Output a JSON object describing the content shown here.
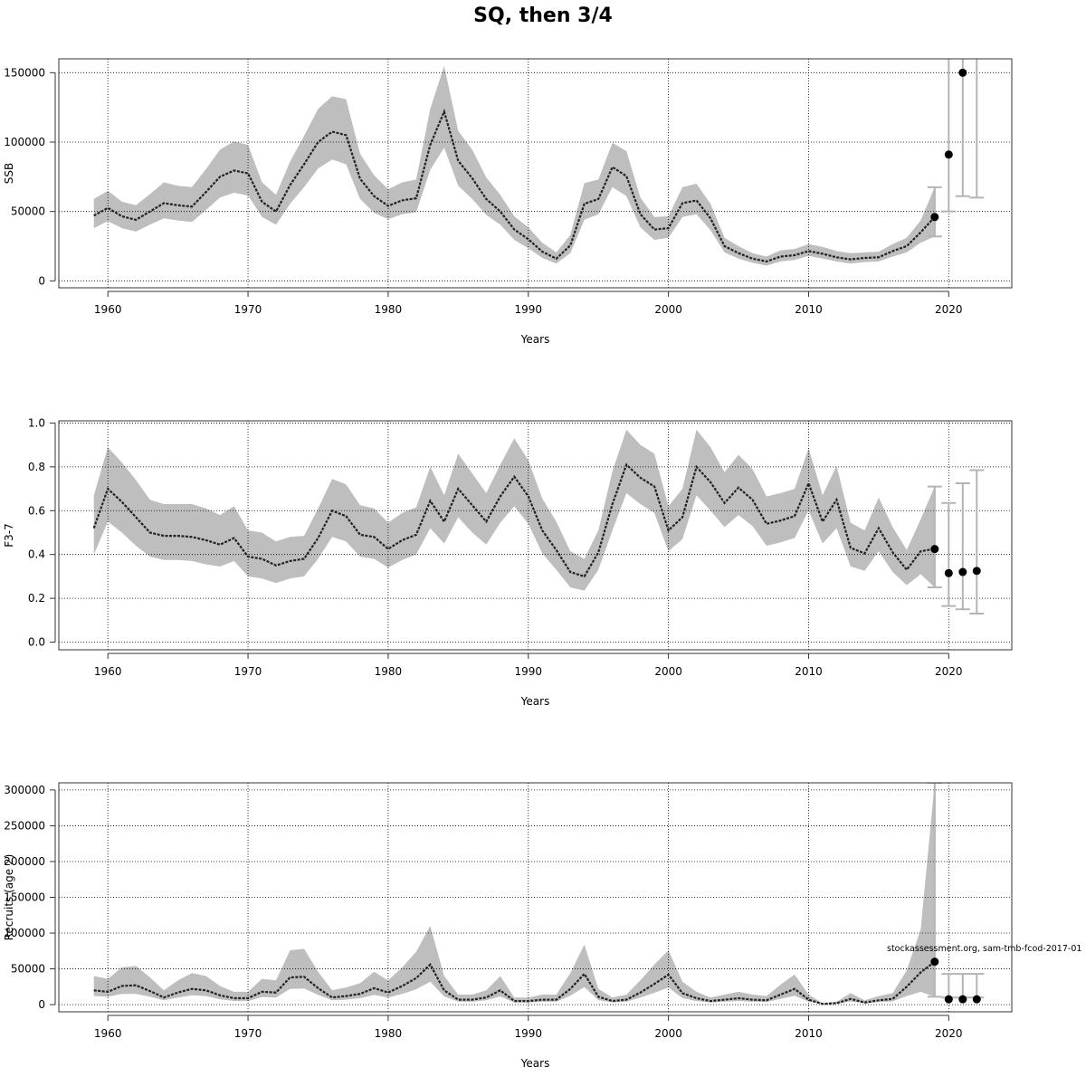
{
  "title": "SQ, then 3/4",
  "footnote": "stockassessment.org, sam-tmb-fcod-2017-01",
  "colors": {
    "band": "#bebebe",
    "line": "#222222",
    "grid": "#000000",
    "errorbar": "#b4b4b4",
    "point": "#000000"
  },
  "chart_data": [
    {
      "type": "area",
      "ylabel": "SSB",
      "xlabel": "Years",
      "xlim": [
        1956.5,
        2024.5
      ],
      "ylim": [
        -5000,
        160000
      ],
      "xticks": [
        "1960",
        "1970",
        "1980",
        "1990",
        "2000",
        "2010",
        "2020"
      ],
      "yticks": [
        "0",
        "50000",
        "100000",
        "150000"
      ],
      "grid": true,
      "years": [
        1959,
        1960,
        1961,
        1962,
        1963,
        1964,
        1965,
        1966,
        1967,
        1968,
        1969,
        1970,
        1971,
        1972,
        1973,
        1974,
        1975,
        1976,
        1977,
        1978,
        1979,
        1980,
        1981,
        1982,
        1983,
        1984,
        1985,
        1986,
        1987,
        1988,
        1989,
        1990,
        1991,
        1992,
        1993,
        1994,
        1995,
        1996,
        1997,
        1998,
        1999,
        2000,
        2001,
        2002,
        2003,
        2004,
        2005,
        2006,
        2007,
        2008,
        2009,
        2010,
        2011,
        2012,
        2013,
        2014,
        2015,
        2016,
        2017,
        2018,
        2019
      ],
      "estimate": [
        47000,
        52500,
        46500,
        44000,
        50000,
        56000,
        54500,
        53500,
        64000,
        75000,
        79500,
        77500,
        57000,
        50000,
        69000,
        84000,
        100000,
        107500,
        105000,
        73500,
        61000,
        54000,
        58000,
        59500,
        98000,
        122000,
        86500,
        74000,
        59000,
        50000,
        37000,
        30000,
        21000,
        16000,
        25500,
        55500,
        59000,
        82000,
        75500,
        48000,
        37000,
        38000,
        56000,
        58000,
        45000,
        25000,
        20000,
        16000,
        14000,
        17500,
        18500,
        21500,
        19500,
        17000,
        15500,
        16500,
        17000,
        21500,
        25000,
        35000,
        46000
      ],
      "lower": [
        38000,
        43000,
        38000,
        35500,
        40500,
        45000,
        43500,
        42500,
        51000,
        60000,
        63500,
        61500,
        46000,
        40500,
        55500,
        67500,
        81000,
        87500,
        84000,
        59000,
        49000,
        44500,
        48000,
        49500,
        80000,
        96000,
        68500,
        59000,
        47500,
        40500,
        29500,
        23500,
        16500,
        12500,
        20000,
        44000,
        48000,
        67500,
        61000,
        38500,
        29500,
        31000,
        46000,
        48000,
        36500,
        20500,
        16000,
        13000,
        11000,
        14000,
        15000,
        18000,
        16000,
        14000,
        12500,
        13500,
        14000,
        17500,
        20500,
        27500,
        32000
      ],
      "upper": [
        59000,
        65000,
        57000,
        54500,
        62500,
        71000,
        68500,
        67500,
        80500,
        94500,
        100500,
        98000,
        71000,
        62000,
        86000,
        104500,
        124000,
        133000,
        131000,
        91500,
        76000,
        66000,
        71000,
        73000,
        124000,
        155000,
        108000,
        94500,
        74500,
        62000,
        46500,
        38500,
        27500,
        20500,
        33000,
        70500,
        73000,
        99500,
        93500,
        60000,
        46000,
        46500,
        67500,
        70000,
        55500,
        31000,
        25000,
        20000,
        17500,
        22000,
        23000,
        26500,
        24500,
        21500,
        20000,
        20500,
        21000,
        26500,
        31000,
        43500,
        67500
      ],
      "forecast": {
        "years": [
          2019,
          2020,
          2021,
          2022
        ],
        "median": [
          46000,
          91000,
          150000,
          null
        ],
        "low": [
          32000,
          50000,
          61000,
          60000
        ],
        "high": [
          67500,
          null,
          null,
          null
        ]
      }
    },
    {
      "type": "area",
      "ylabel": "F3-7",
      "xlabel": "Years",
      "xlim": [
        1956.5,
        2024.5
      ],
      "ylim": [
        -0.035,
        1.01
      ],
      "xticks": [
        "1960",
        "1970",
        "1980",
        "1990",
        "2000",
        "2010",
        "2020"
      ],
      "yticks": [
        "0.0",
        "0.2",
        "0.4",
        "0.6",
        "0.8",
        "1.0"
      ],
      "grid": true,
      "years": [
        1959,
        1960,
        1961,
        1962,
        1963,
        1964,
        1965,
        1966,
        1967,
        1968,
        1969,
        1970,
        1971,
        1972,
        1973,
        1974,
        1975,
        1976,
        1977,
        1978,
        1979,
        1980,
        1981,
        1982,
        1983,
        1984,
        1985,
        1986,
        1987,
        1988,
        1989,
        1990,
        1991,
        1992,
        1993,
        1994,
        1995,
        1996,
        1997,
        1998,
        1999,
        2000,
        2001,
        2002,
        2003,
        2004,
        2005,
        2006,
        2007,
        2008,
        2009,
        2010,
        2011,
        2012,
        2013,
        2014,
        2015,
        2016,
        2017,
        2018,
        2019
      ],
      "estimate": [
        0.52,
        0.7,
        0.64,
        0.57,
        0.5,
        0.485,
        0.485,
        0.48,
        0.465,
        0.445,
        0.475,
        0.39,
        0.38,
        0.35,
        0.37,
        0.38,
        0.475,
        0.6,
        0.575,
        0.49,
        0.48,
        0.425,
        0.465,
        0.49,
        0.645,
        0.55,
        0.7,
        0.625,
        0.55,
        0.665,
        0.755,
        0.665,
        0.51,
        0.42,
        0.32,
        0.3,
        0.41,
        0.63,
        0.81,
        0.75,
        0.71,
        0.51,
        0.57,
        0.8,
        0.73,
        0.635,
        0.705,
        0.65,
        0.54,
        0.555,
        0.575,
        0.725,
        0.55,
        0.65,
        0.43,
        0.405,
        0.52,
        0.41,
        0.33,
        0.415,
        0.425
      ],
      "lower": [
        0.4,
        0.55,
        0.5,
        0.44,
        0.39,
        0.375,
        0.375,
        0.37,
        0.355,
        0.345,
        0.37,
        0.3,
        0.29,
        0.27,
        0.29,
        0.3,
        0.38,
        0.48,
        0.46,
        0.39,
        0.38,
        0.34,
        0.375,
        0.4,
        0.52,
        0.45,
        0.57,
        0.5,
        0.445,
        0.545,
        0.62,
        0.54,
        0.405,
        0.33,
        0.25,
        0.235,
        0.33,
        0.51,
        0.68,
        0.63,
        0.59,
        0.415,
        0.47,
        0.67,
        0.6,
        0.525,
        0.58,
        0.53,
        0.44,
        0.455,
        0.475,
        0.6,
        0.45,
        0.52,
        0.345,
        0.325,
        0.415,
        0.32,
        0.26,
        0.31,
        0.25
      ],
      "upper": [
        0.67,
        0.89,
        0.82,
        0.74,
        0.65,
        0.63,
        0.63,
        0.63,
        0.61,
        0.58,
        0.62,
        0.51,
        0.5,
        0.46,
        0.48,
        0.485,
        0.61,
        0.745,
        0.72,
        0.625,
        0.61,
        0.545,
        0.59,
        0.615,
        0.8,
        0.67,
        0.86,
        0.77,
        0.68,
        0.81,
        0.93,
        0.83,
        0.655,
        0.55,
        0.415,
        0.38,
        0.51,
        0.78,
        0.97,
        0.9,
        0.86,
        0.62,
        0.7,
        0.97,
        0.89,
        0.775,
        0.855,
        0.79,
        0.665,
        0.68,
        0.7,
        0.885,
        0.67,
        0.805,
        0.545,
        0.51,
        0.66,
        0.525,
        0.42,
        0.56,
        0.71
      ],
      "forecast": {
        "years": [
          2019,
          2020,
          2021,
          2022
        ],
        "median": [
          0.425,
          0.315,
          0.32,
          0.325
        ],
        "low": [
          0.25,
          0.165,
          0.15,
          0.13
        ],
        "high": [
          0.71,
          0.635,
          0.725,
          0.785
        ]
      }
    },
    {
      "type": "area",
      "ylabel": "Recruits (age 2)",
      "xlabel": "Years",
      "xlim": [
        1956.5,
        2024.5
      ],
      "ylim": [
        -10000,
        310000
      ],
      "xticks": [
        "1960",
        "1970",
        "1980",
        "1990",
        "2000",
        "2010",
        "2020"
      ],
      "yticks": [
        "0",
        "50000",
        "100000",
        "150000",
        "200000",
        "250000",
        "300000"
      ],
      "grid": true,
      "years": [
        1959,
        1960,
        1961,
        1962,
        1963,
        1964,
        1965,
        1966,
        1967,
        1968,
        1969,
        1970,
        1971,
        1972,
        1973,
        1974,
        1975,
        1976,
        1977,
        1978,
        1979,
        1980,
        1981,
        1982,
        1983,
        1984,
        1985,
        1986,
        1987,
        1988,
        1989,
        1990,
        1991,
        1992,
        1993,
        1994,
        1995,
        1996,
        1997,
        1998,
        1999,
        2000,
        2001,
        2002,
        2003,
        2004,
        2005,
        2006,
        2007,
        2008,
        2009,
        2010,
        2011,
        2012,
        2013,
        2014,
        2015,
        2016,
        2017,
        2018,
        2019
      ],
      "estimate": [
        20000,
        18000,
        26000,
        27000,
        19000,
        10000,
        17000,
        22000,
        20000,
        13000,
        9000,
        9000,
        18000,
        17000,
        38000,
        39000,
        23000,
        10000,
        12000,
        15000,
        23000,
        17000,
        26000,
        37000,
        56000,
        20000,
        7000,
        7000,
        10000,
        20000,
        5000,
        5000,
        7000,
        7000,
        22000,
        43000,
        11000,
        5000,
        7000,
        17000,
        29000,
        42000,
        16000,
        9000,
        5000,
        7000,
        9000,
        7000,
        6000,
        14000,
        22000,
        7000,
        1000,
        2000,
        8000,
        3000,
        6000,
        8000,
        25000,
        45000,
        60000
      ],
      "lower": [
        12000,
        11000,
        15000,
        15000,
        11000,
        6000,
        10000,
        13000,
        12000,
        7500,
        5000,
        5000,
        10500,
        10000,
        22000,
        22500,
        13500,
        6000,
        7000,
        9000,
        13500,
        10000,
        15000,
        21500,
        32000,
        11500,
        4000,
        4000,
        6000,
        11500,
        3000,
        3000,
        4000,
        4000,
        12500,
        24500,
        6500,
        3000,
        4000,
        10000,
        16500,
        24000,
        9000,
        5000,
        3000,
        4000,
        5000,
        4000,
        3500,
        8000,
        12500,
        4000,
        500,
        1000,
        4500,
        1500,
        3500,
        4500,
        12000,
        18000,
        11000
      ],
      "upper": [
        40000,
        36000,
        52000,
        54000,
        38000,
        20000,
        34000,
        44000,
        40000,
        26000,
        18000,
        18000,
        36000,
        34000,
        76000,
        78000,
        46000,
        20000,
        24000,
        30000,
        46000,
        34000,
        52000,
        74000,
        110000,
        40000,
        14000,
        14000,
        20000,
        40000,
        10000,
        10000,
        14000,
        14000,
        44000,
        84000,
        22000,
        10000,
        14000,
        34000,
        56000,
        76000,
        32000,
        18000,
        10000,
        14000,
        18000,
        14000,
        12000,
        28000,
        42000,
        14000,
        2000,
        4000,
        16000,
        6000,
        12000,
        16000,
        48000,
        105000,
        310000
      ],
      "forecast": {
        "years": [
          2019,
          2020,
          2021,
          2022
        ],
        "median": [
          60000,
          7500,
          7500,
          7500
        ],
        "low": [
          11000,
          10000,
          10000,
          10000
        ],
        "high": [
          310000,
          43000,
          43000,
          43000
        ]
      }
    }
  ]
}
